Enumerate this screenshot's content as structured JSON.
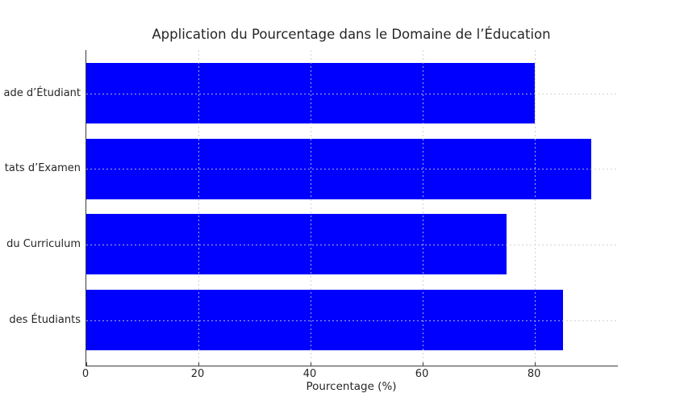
{
  "chart_data": {
    "type": "bar",
    "orientation": "horizontal",
    "title": "Application du Pourcentage dans le Domaine de l’Éducation",
    "xlabel": "Pourcentage (%)",
    "ylabel": "",
    "categories": [
      "ade d’Étudiant",
      "tats d’Examen",
      "du Curriculum",
      "des Étudiants"
    ],
    "values": [
      80,
      90,
      75,
      85
    ],
    "xticks": [
      "0",
      "20",
      "40",
      "60",
      "80"
    ],
    "xtick_values": [
      0,
      20,
      40,
      60,
      80
    ],
    "xlim": [
      0,
      94.8
    ],
    "grid": true,
    "grid_style": "dotted",
    "grid_above_bars": true,
    "legend": false,
    "colors": {
      "bar": "#0000ff",
      "grid": "#c9c9c9",
      "axis": "#3b3b3b",
      "text": "#262626",
      "background": "#ffffff"
    }
  }
}
